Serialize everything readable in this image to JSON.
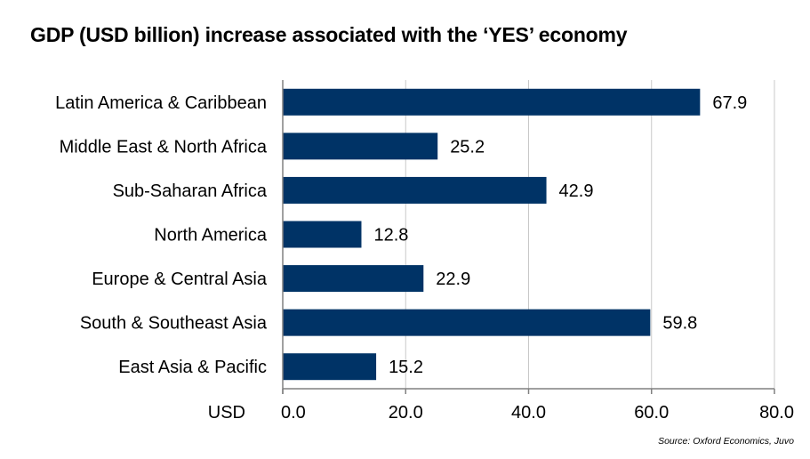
{
  "chart_data": {
    "type": "bar",
    "orientation": "horizontal",
    "title": "GDP (USD billion) increase associated with the ‘YES’ economy",
    "categories": [
      "Latin America & Caribbean",
      "Middle East & North Africa",
      "Sub-Saharan Africa",
      "North America",
      "Europe & Central Asia",
      "South & Southeast Asia",
      "East Asia & Pacific"
    ],
    "values": [
      67.9,
      25.2,
      42.9,
      12.8,
      22.9,
      59.8,
      15.2
    ],
    "value_labels": [
      "67.9",
      "25.2",
      "42.9",
      "12.8",
      "22.9",
      "59.8",
      "15.2"
    ],
    "xlabel": "USD",
    "ylabel": "",
    "xlim": [
      0,
      80
    ],
    "xticks": [
      0,
      20,
      40,
      60,
      80
    ],
    "xtick_labels": [
      "0.0",
      "20.0",
      "40.0",
      "60.0",
      "80.0"
    ],
    "grid": "vertical",
    "bar_color": "#003366",
    "source": "Source: Oxford Economics, Juvo"
  }
}
